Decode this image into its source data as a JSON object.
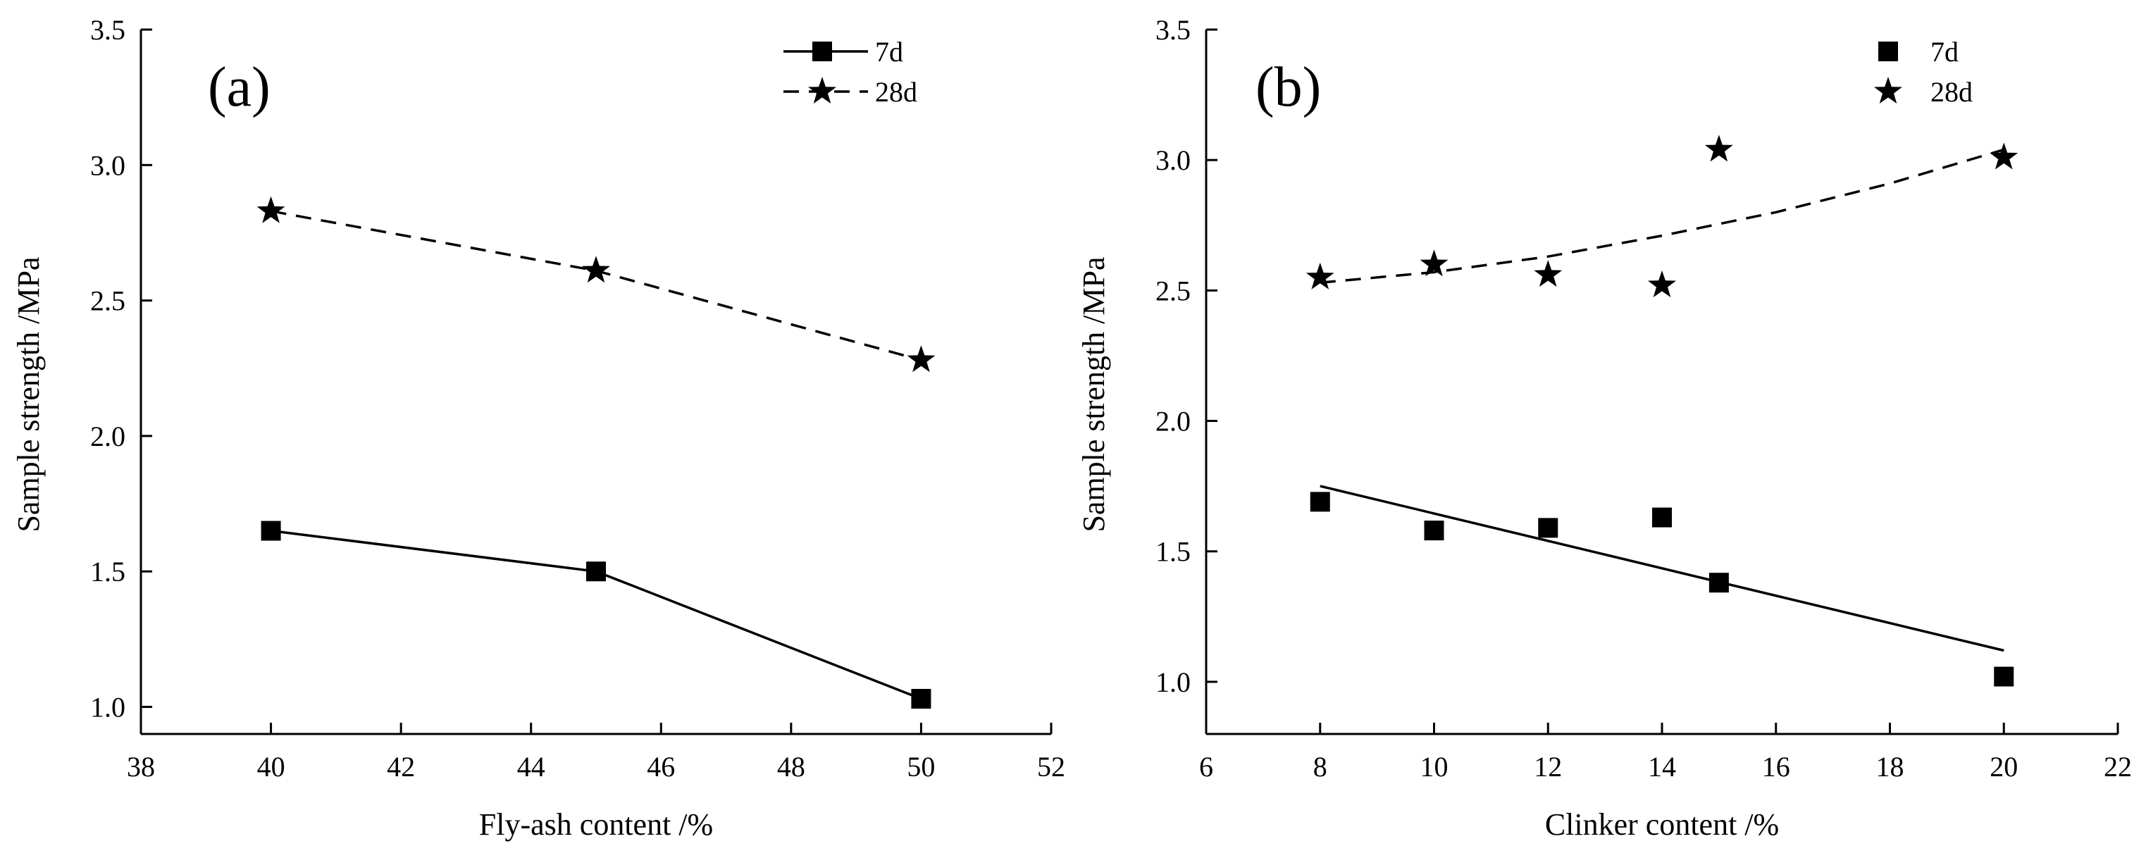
{
  "chart_data": [
    {
      "type": "line",
      "panel_label": "(a)",
      "xlabel": "Fly-ash content /%",
      "ylabel": "Sample strength /MPa",
      "xlim": [
        38,
        52
      ],
      "ylim": [
        0.9,
        3.5
      ],
      "xticks": [
        38,
        40,
        42,
        44,
        46,
        48,
        50,
        52
      ],
      "yticks": [
        1.0,
        1.5,
        2.0,
        2.5,
        3.0,
        3.5
      ],
      "legend_position": "top-right",
      "series": [
        {
          "name": "7d",
          "marker": "square",
          "line": "solid",
          "x": [
            40,
            45,
            50
          ],
          "y": [
            1.65,
            1.5,
            1.03
          ]
        },
        {
          "name": "28d",
          "marker": "star",
          "line": "dashed",
          "x": [
            40,
            45,
            50
          ],
          "y": [
            2.83,
            2.61,
            2.28
          ]
        }
      ]
    },
    {
      "type": "scatter",
      "panel_label": "(b)",
      "xlabel": "Clinker content /%",
      "ylabel": "Sample strength /MPa",
      "xlim": [
        6,
        22
      ],
      "ylim": [
        0.8,
        3.5
      ],
      "xticks": [
        6,
        8,
        10,
        12,
        14,
        16,
        18,
        20,
        22
      ],
      "yticks": [
        1.0,
        1.5,
        2.0,
        2.5,
        3.0,
        3.5
      ],
      "legend_position": "top-right",
      "series": [
        {
          "name": "7d",
          "marker": "square",
          "x": [
            8,
            10,
            12,
            14,
            15,
            20
          ],
          "y": [
            1.69,
            1.58,
            1.59,
            1.63,
            1.38,
            1.02
          ]
        },
        {
          "name": "28d",
          "marker": "star",
          "x": [
            8,
            10,
            12,
            14,
            15,
            20
          ],
          "y": [
            2.55,
            2.6,
            2.56,
            2.52,
            3.04,
            3.01
          ]
        }
      ],
      "fits": [
        {
          "series": "7d",
          "kind": "linear",
          "line": "solid",
          "x": [
            8,
            20
          ],
          "y": [
            1.75,
            1.12
          ]
        },
        {
          "series": "28d",
          "kind": "quadratic",
          "line": "dashed",
          "x": [
            8,
            10,
            12,
            14,
            16,
            18,
            20
          ],
          "y": [
            2.53,
            2.57,
            2.63,
            2.71,
            2.8,
            2.91,
            3.04
          ]
        }
      ]
    }
  ]
}
